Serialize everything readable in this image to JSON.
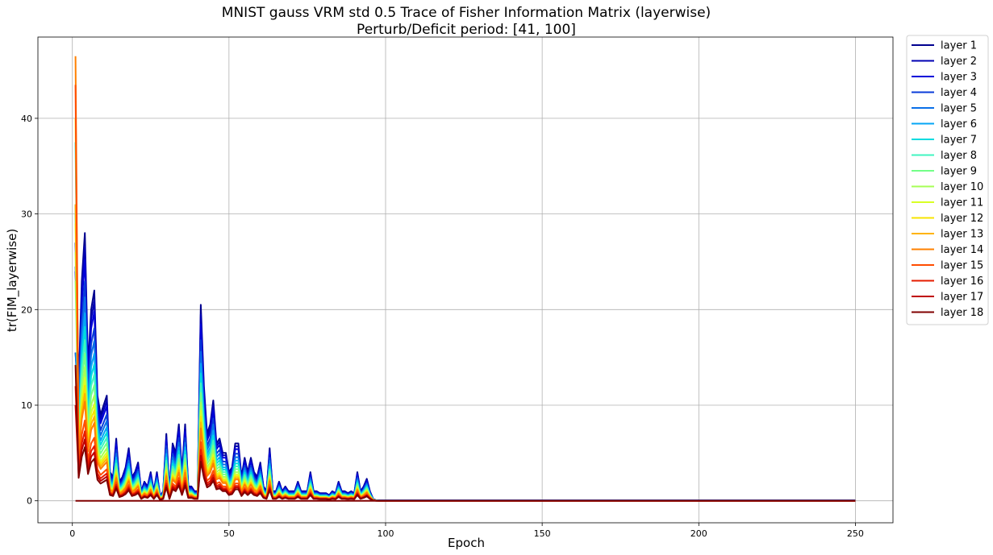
{
  "chart_data": {
    "type": "line",
    "title": "MNIST gauss VRM std 0.5 Trace of Fisher Information Matrix (layerwise)",
    "subtitle": "Perturb/Deficit period: [41, 100]",
    "xlabel": "Epoch",
    "ylabel": "tr(FIM_layerwise)",
    "xlim": [
      -11,
      262
    ],
    "ylim": [
      -2.3,
      48.5
    ],
    "xticks": [
      0,
      50,
      100,
      150,
      200,
      250
    ],
    "yticks": [
      0,
      10,
      20,
      30,
      40
    ],
    "grid": true,
    "legend_position": "outside-right-top",
    "base_curve": {
      "epochs": [
        1,
        2,
        3,
        4,
        5,
        6,
        7,
        8,
        9,
        10,
        11,
        12,
        13,
        14,
        15,
        16,
        17,
        18,
        19,
        20,
        21,
        22,
        23,
        24,
        25,
        26,
        27,
        28,
        29,
        30,
        31,
        32,
        33,
        34,
        35,
        36,
        37,
        38,
        39,
        40,
        41,
        42,
        43,
        44,
        45,
        46,
        47,
        48,
        49,
        50,
        51,
        52,
        53,
        54,
        55,
        56,
        57,
        58,
        59,
        60,
        61,
        62,
        63,
        64,
        65,
        66,
        67,
        68,
        69,
        70,
        71,
        72,
        73,
        74,
        75,
        76,
        77,
        78,
        79,
        80,
        81,
        82,
        83,
        84,
        85,
        86,
        87,
        88,
        89,
        90,
        91,
        92,
        93,
        94,
        95,
        96,
        97,
        98,
        99,
        100,
        101,
        110,
        120,
        130,
        140,
        150,
        160,
        170,
        180,
        190,
        200,
        210,
        220,
        230,
        240,
        250
      ],
      "values": [
        27,
        12,
        23,
        28,
        14,
        20,
        22,
        11,
        9,
        10,
        11,
        3,
        2.5,
        6.5,
        2,
        2.5,
        3.5,
        5.5,
        2.5,
        3,
        4,
        1,
        2,
        1.5,
        3,
        1,
        3,
        0.5,
        1,
        7,
        1,
        6,
        5,
        8,
        3,
        8,
        1.5,
        1.5,
        1,
        1,
        20.5,
        12,
        7,
        8,
        10.5,
        6,
        6.5,
        5,
        5,
        3,
        3.5,
        6,
        6,
        2.5,
        4.5,
        3,
        4.5,
        3,
        2.5,
        4,
        1.5,
        1,
        5.5,
        1,
        1,
        2,
        1,
        1.5,
        1,
        1,
        1,
        2,
        1,
        1,
        1,
        3,
        1,
        1,
        0.8,
        0.8,
        0.8,
        0.6,
        1,
        0.8,
        2,
        1,
        1,
        0.8,
        1,
        0.8,
        3,
        1,
        1.5,
        2.3,
        1,
        0.2,
        0.05,
        0.03,
        0.03,
        0.03,
        0.03,
        0.03,
        0.03,
        0.03,
        0.03,
        0.03,
        0.03,
        0.03,
        0.03,
        0.03,
        0.03,
        0.03,
        0.03,
        0.03,
        0.03,
        0.03
      ]
    },
    "series": [
      {
        "name": "layer 1",
        "color": "#00008f",
        "scale": 1.0,
        "first": 27.0
      },
      {
        "name": "layer 2",
        "color": "#0000b3",
        "scale": 0.95,
        "first": 24.0
      },
      {
        "name": "layer 3",
        "color": "#0000d9",
        "scale": 0.9,
        "first": 15.5
      },
      {
        "name": "layer 4",
        "color": "#0a3cd9",
        "scale": 0.82,
        "first": 24.5
      },
      {
        "name": "layer 5",
        "color": "#0a6fe8",
        "scale": 0.76,
        "first": 15.5
      },
      {
        "name": "layer 6",
        "color": "#05a6f5",
        "scale": 0.7,
        "first": 31.0
      },
      {
        "name": "layer 7",
        "color": "#00dbe0",
        "scale": 0.65,
        "first": 37.5
      },
      {
        "name": "layer 8",
        "color": "#40f5c0",
        "scale": 0.6,
        "first": 30.0
      },
      {
        "name": "layer 9",
        "color": "#73ff88",
        "scale": 0.55,
        "first": 23.0
      },
      {
        "name": "layer 10",
        "color": "#a6ff55",
        "scale": 0.5,
        "first": 26.0
      },
      {
        "name": "layer 11",
        "color": "#d9ff25",
        "scale": 0.46,
        "first": 29.0
      },
      {
        "name": "layer 12",
        "color": "#f7e400",
        "scale": 0.43,
        "first": 40.0
      },
      {
        "name": "layer 13",
        "color": "#ffb300",
        "scale": 0.4,
        "first": 31.0
      },
      {
        "name": "layer 14",
        "color": "#ff8000",
        "scale": 0.37,
        "first": 46.5
      },
      {
        "name": "layer 15",
        "color": "#ff4d00",
        "scale": 0.3,
        "first": 43.5
      },
      {
        "name": "layer 16",
        "color": "#e61c00",
        "scale": 0.26,
        "first": 12.0
      },
      {
        "name": "layer 17",
        "color": "#bf0000",
        "scale": 0.23,
        "first": 10.0
      },
      {
        "name": "layer 18",
        "color": "#800000",
        "scale": 0.2,
        "first": 14.2
      }
    ]
  }
}
